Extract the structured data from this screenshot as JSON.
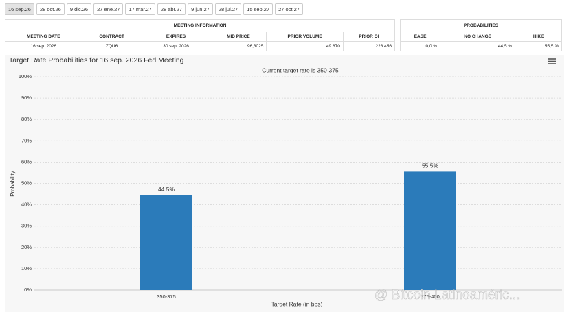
{
  "tabs": [
    "16 sep.26",
    "28 oct.26",
    "9 dic.26",
    "27 ene.27",
    "17 mar.27",
    "28 abr.27",
    "9 jun.27",
    "28 jul.27",
    "15 sep.27",
    "27 oct.27"
  ],
  "meeting_table": {
    "title": "MEETING INFORMATION",
    "headers": [
      "MEETING DATE",
      "CONTRACT",
      "EXPIRES",
      "MID PRICE",
      "PRIOR VOLUME",
      "PRIOR OI"
    ],
    "rows": [
      [
        "16 sep. 2026",
        "ZQU6",
        "30 sep. 2026",
        "96,3025",
        "49.870",
        "228.456"
      ]
    ]
  },
  "probability_table": {
    "title": "PROBABILITIES",
    "headers": [
      "EASE",
      "NO CHANGE",
      "HIKE"
    ],
    "rows": [
      [
        "0,0 %",
        "44,5 %",
        "55,5 %"
      ]
    ]
  },
  "chart_data": {
    "type": "bar",
    "title": "Target Rate Probabilities for 16 sep. 2026 Fed Meeting",
    "subtitle": "Current target rate is 350-375",
    "categories": [
      "350-375",
      "375-400"
    ],
    "values": [
      44.5,
      55.5
    ],
    "value_labels": [
      "44.5%",
      "55.5%"
    ],
    "color": "#2b7bba",
    "ylim": [
      0,
      100
    ],
    "yticks": [
      {
        "value": 0,
        "label": "0%"
      },
      {
        "value": 10,
        "label": "10%"
      },
      {
        "value": 20,
        "label": "20%"
      },
      {
        "value": 30,
        "label": "30%"
      },
      {
        "value": 40,
        "label": "40%"
      },
      {
        "value": 50,
        "label": "50%"
      },
      {
        "value": 60,
        "label": "60%"
      },
      {
        "value": 70,
        "label": "70%"
      },
      {
        "value": 80,
        "label": "80%"
      },
      {
        "value": 90,
        "label": "90%"
      },
      {
        "value": 100,
        "label": "100%"
      }
    ],
    "y_label": "Probability",
    "x_label": "Target Rate (in bps)",
    "grid": true
  },
  "watermark": "@ Bitcoin Latinoaméric..."
}
